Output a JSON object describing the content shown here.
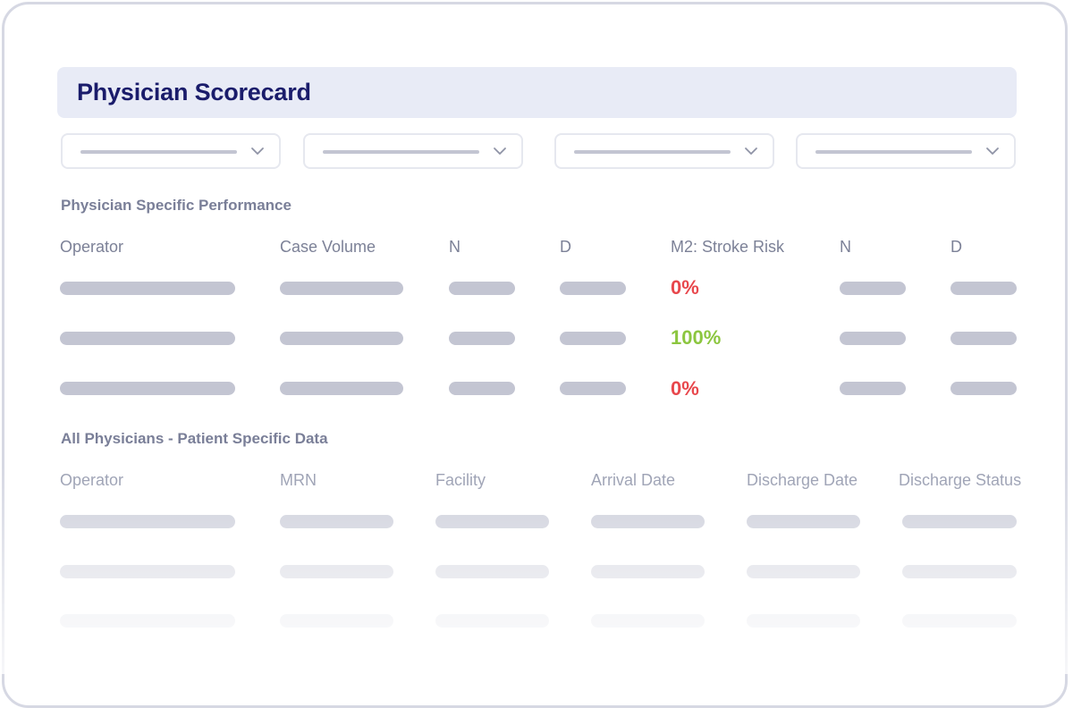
{
  "header": {
    "title": "Physician Scorecard"
  },
  "filters": [
    {
      "value": ""
    },
    {
      "value": ""
    },
    {
      "value": ""
    },
    {
      "value": ""
    }
  ],
  "performance": {
    "title": "Physician Specific Performance",
    "columns": [
      "Operator",
      "Case Volume",
      "N",
      "D",
      "M2: Stroke Risk",
      "N",
      "D"
    ],
    "rows": [
      {
        "stroke_risk": "0%",
        "status_color": "#e8474c"
      },
      {
        "stroke_risk": "100%",
        "status_color": "#8cc63f"
      },
      {
        "stroke_risk": "0%",
        "status_color": "#e8474c"
      }
    ]
  },
  "patients": {
    "title": "All Physicians - Patient Specific Data",
    "columns": [
      "Operator",
      "MRN",
      "Facility",
      "Arrival Date",
      "Discharge Date",
      "Discharge Status"
    ]
  },
  "colors": {
    "accent_title": "#1a1c6b",
    "header_bg": "#e8ebf6",
    "placeholder_bar": "#c3c5d2",
    "negative": "#e8474c",
    "positive": "#8cc63f"
  }
}
